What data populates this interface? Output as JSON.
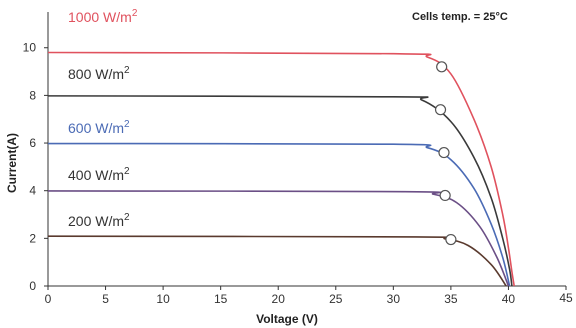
{
  "chart_data": {
    "type": "line",
    "title": "",
    "annotation": "Cells temp. = 25°C",
    "xlabel": "Voltage  (V)",
    "ylabel": "Current(A)",
    "xlim": [
      0,
      45
    ],
    "ylim": [
      0,
      11.5
    ],
    "xticks": [
      0,
      5,
      10,
      15,
      20,
      25,
      30,
      35,
      40,
      45
    ],
    "yticks": [
      0,
      2,
      4,
      6,
      8,
      10
    ],
    "grid": false,
    "series": [
      {
        "label": "1000 W/m",
        "label_sup": "2",
        "color": "#e0525e",
        "x": [
          0,
          30,
          33,
          35,
          37,
          38.5,
          39.5,
          40,
          40.3,
          40.5
        ],
        "y": [
          9.8,
          9.75,
          9.6,
          8.9,
          7.0,
          5.0,
          3.0,
          1.6,
          0.6,
          0
        ],
        "mpp": [
          34.2,
          9.2
        ]
      },
      {
        "label": "800 W/m",
        "label_sup": "2",
        "color": "#3a3a3a",
        "x": [
          0,
          30,
          32.5,
          35,
          37,
          38.5,
          39.5,
          40.1,
          40.3
        ],
        "y": [
          7.98,
          7.94,
          7.8,
          6.9,
          5.4,
          3.7,
          2.0,
          0.7,
          0
        ],
        "mpp": [
          34.1,
          7.4
        ]
      },
      {
        "label": "600 W/m",
        "label_sup": "2",
        "color": "#4b6bb5",
        "x": [
          0,
          30,
          33,
          35,
          37,
          38.5,
          39.5,
          40.1
        ],
        "y": [
          5.98,
          5.95,
          5.8,
          5.3,
          4.1,
          2.6,
          1.2,
          0
        ],
        "mpp": [
          34.4,
          5.6
        ]
      },
      {
        "label": "400 W/m",
        "label_sup": "2",
        "color": "#6b4f86",
        "x": [
          0,
          31,
          33.5,
          35.5,
          37.5,
          39,
          40
        ],
        "y": [
          3.99,
          3.96,
          3.85,
          3.5,
          2.5,
          1.2,
          0
        ],
        "mpp": [
          34.5,
          3.8
        ]
      },
      {
        "label": "200 W/m",
        "label_sup": "2",
        "color": "#5a3a2e",
        "x": [
          0,
          32,
          34.5,
          36.5,
          38.5,
          39.8
        ],
        "y": [
          2.09,
          2.06,
          1.98,
          1.7,
          0.9,
          0
        ],
        "mpp": [
          35.0,
          1.95
        ]
      }
    ]
  }
}
